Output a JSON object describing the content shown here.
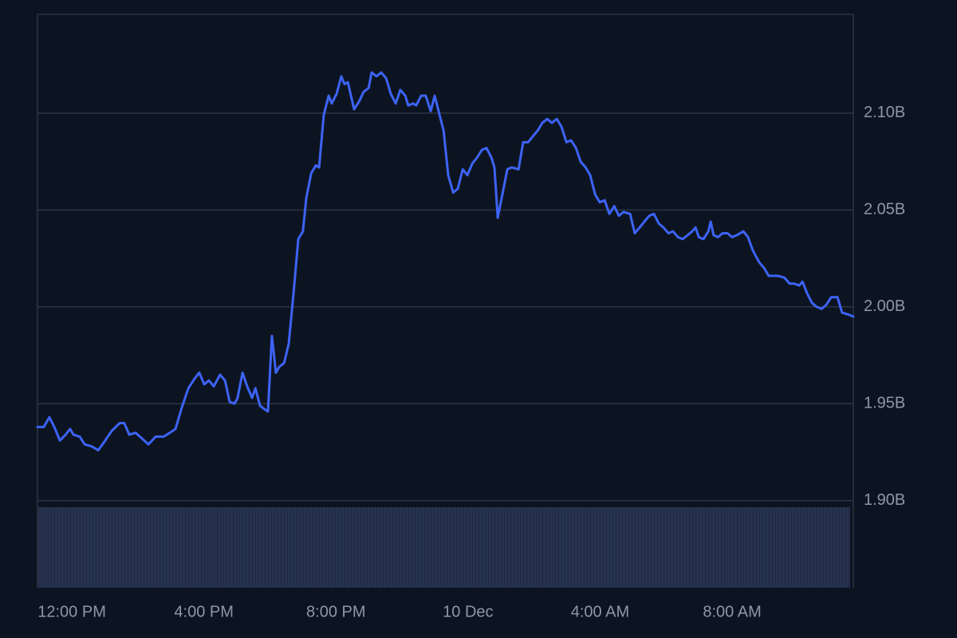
{
  "chart_data": {
    "type": "line",
    "color": "#3d63f5",
    "grid": true,
    "xlim": [
      10.96,
      35.67
    ],
    "xticks": [
      {
        "value": 12,
        "label": "12:00 PM"
      },
      {
        "value": 16,
        "label": "4:00 PM"
      },
      {
        "value": 20,
        "label": "8:00 PM"
      },
      {
        "value": 24,
        "label": "10 Dec"
      },
      {
        "value": 28,
        "label": "4:00 AM"
      },
      {
        "value": 32,
        "label": "8:00 AM"
      }
    ],
    "ylim": [
      1.855,
      2.151
    ],
    "yticks": [
      {
        "value": 1.9,
        "label": "1.90B"
      },
      {
        "value": 1.95,
        "label": "1.95B"
      },
      {
        "value": 2.0,
        "label": "2.00B"
      },
      {
        "value": 2.05,
        "label": "2.05B"
      },
      {
        "value": 2.1,
        "label": "2.10B"
      }
    ],
    "x": [
      10.96,
      11.15,
      11.32,
      11.47,
      11.64,
      11.81,
      11.95,
      12.05,
      12.24,
      12.39,
      12.6,
      12.8,
      12.97,
      13.21,
      13.45,
      13.59,
      13.74,
      13.93,
      14.13,
      14.32,
      14.54,
      14.78,
      14.97,
      15.14,
      15.33,
      15.53,
      15.72,
      15.86,
      16.01,
      16.15,
      16.3,
      16.49,
      16.64,
      16.78,
      16.93,
      17.02,
      17.17,
      17.31,
      17.46,
      17.56,
      17.7,
      17.85,
      17.94,
      18.06,
      18.18,
      18.28,
      18.43,
      18.57,
      18.71,
      18.86,
      19.0,
      19.1,
      19.25,
      19.39,
      19.49,
      19.63,
      19.78,
      19.87,
      20.02,
      20.16,
      20.26,
      20.36,
      20.55,
      20.7,
      20.84,
      20.99,
      21.08,
      21.23,
      21.37,
      21.52,
      21.66,
      21.81,
      21.95,
      22.1,
      22.19,
      22.34,
      22.43,
      22.58,
      22.72,
      22.87,
      22.99,
      23.11,
      23.26,
      23.4,
      23.55,
      23.69,
      23.84,
      23.98,
      24.13,
      24.27,
      24.42,
      24.56,
      24.71,
      24.8,
      24.9,
      25.04,
      25.19,
      25.33,
      25.53,
      25.67,
      25.82,
      25.96,
      26.11,
      26.25,
      26.4,
      26.54,
      26.69,
      26.83,
      26.98,
      27.12,
      27.27,
      27.41,
      27.56,
      27.7,
      27.85,
      27.99,
      28.14,
      28.28,
      28.43,
      28.57,
      28.71,
      28.91,
      29.05,
      29.2,
      29.34,
      29.49,
      29.63,
      29.78,
      29.92,
      30.07,
      30.21,
      30.36,
      30.5,
      30.65,
      30.79,
      30.89,
      30.99,
      31.13,
      31.28,
      31.35,
      31.44,
      31.57,
      31.71,
      31.86,
      32.0,
      32.14,
      32.34,
      32.48,
      32.63,
      32.82,
      32.97,
      33.11,
      33.26,
      33.4,
      33.59,
      33.74,
      33.88,
      34.03,
      34.13,
      34.27,
      34.42,
      34.56,
      34.71,
      34.85,
      35.0,
      35.19,
      35.33,
      35.53,
      35.67
    ],
    "values": [
      1.938,
      1.938,
      1.943,
      1.938,
      1.931,
      1.934,
      1.937,
      1.934,
      1.933,
      1.929,
      1.928,
      1.926,
      1.93,
      1.936,
      1.94,
      1.94,
      1.934,
      1.935,
      1.932,
      1.929,
      1.933,
      1.933,
      1.935,
      1.937,
      1.948,
      1.958,
      1.963,
      1.966,
      1.96,
      1.962,
      1.959,
      1.965,
      1.962,
      1.951,
      1.95,
      1.953,
      1.966,
      1.959,
      1.953,
      1.958,
      1.949,
      1.947,
      1.946,
      1.985,
      1.966,
      1.969,
      1.971,
      1.981,
      2.006,
      2.035,
      2.039,
      2.056,
      2.069,
      2.073,
      2.072,
      2.099,
      2.109,
      2.105,
      2.11,
      2.119,
      2.115,
      2.116,
      2.102,
      2.106,
      2.111,
      2.113,
      2.121,
      2.119,
      2.121,
      2.118,
      2.11,
      2.105,
      2.112,
      2.109,
      2.104,
      2.105,
      2.104,
      2.109,
      2.109,
      2.101,
      2.109,
      2.101,
      2.091,
      2.068,
      2.059,
      2.061,
      2.071,
      2.068,
      2.074,
      2.077,
      2.081,
      2.082,
      2.077,
      2.072,
      2.046,
      2.058,
      2.071,
      2.072,
      2.071,
      2.085,
      2.085,
      2.088,
      2.091,
      2.095,
      2.097,
      2.095,
      2.097,
      2.093,
      2.085,
      2.086,
      2.082,
      2.075,
      2.072,
      2.068,
      2.058,
      2.054,
      2.055,
      2.048,
      2.052,
      2.047,
      2.049,
      2.048,
      2.038,
      2.041,
      2.044,
      2.047,
      2.048,
      2.043,
      2.041,
      2.038,
      2.039,
      2.036,
      2.035,
      2.037,
      2.039,
      2.041,
      2.036,
      2.035,
      2.039,
      2.044,
      2.037,
      2.036,
      2.038,
      2.038,
      2.036,
      2.037,
      2.039,
      2.036,
      2.029,
      2.023,
      2.02,
      2.016,
      2.016,
      2.016,
      2.015,
      2.012,
      2.012,
      2.011,
      2.013,
      2.007,
      2.002,
      2.0,
      1.999,
      2.001,
      2.005,
      2.005,
      1.997,
      1.996,
      1.995
    ]
  }
}
